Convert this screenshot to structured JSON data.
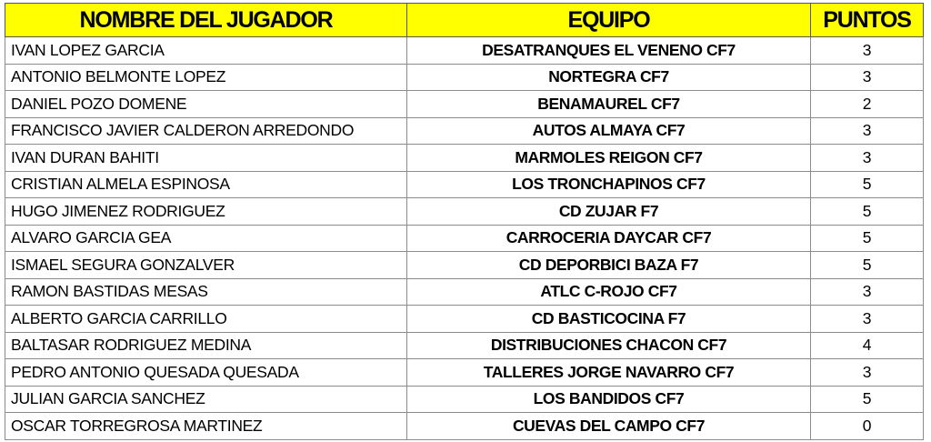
{
  "headers": {
    "name": "NOMBRE DEL JUGADOR",
    "team": "EQUIPO",
    "points": "PUNTOS"
  },
  "header_color": "#ffff00",
  "rows": [
    {
      "name": "IVAN LOPEZ GARCIA",
      "team": "DESATRANQUES EL VENENO CF7",
      "points": "3"
    },
    {
      "name": "ANTONIO BELMONTE LOPEZ",
      "team": "NORTEGRA CF7",
      "points": "3"
    },
    {
      "name": "DANIEL POZO DOMENE",
      "team": "BENAMAUREL CF7",
      "points": "2"
    },
    {
      "name": "FRANCISCO JAVIER CALDERON ARREDONDO",
      "team": "AUTOS ALMAYA CF7",
      "points": "3"
    },
    {
      "name": "IVAN DURAN BAHITI",
      "team": "MARMOLES REIGON CF7",
      "points": "3"
    },
    {
      "name": "CRISTIAN ALMELA ESPINOSA",
      "team": "LOS TRONCHAPINOS CF7",
      "points": "5"
    },
    {
      "name": "HUGO JIMENEZ RODRIGUEZ",
      "team": "CD ZUJAR F7",
      "points": "5"
    },
    {
      "name": "ALVARO GARCIA GEA",
      "team": "CARROCERIA DAYCAR CF7",
      "points": "5"
    },
    {
      "name": "ISMAEL SEGURA GONZALVER",
      "team": "CD DEPORBICI BAZA F7",
      "points": "5"
    },
    {
      "name": "RAMON BASTIDAS MESAS",
      "team": "ATLC C-ROJO CF7",
      "points": "3"
    },
    {
      "name": "ALBERTO GARCIA CARRILLO",
      "team": "CD BASTICOCINA F7",
      "points": "3"
    },
    {
      "name": "BALTASAR RODRIGUEZ MEDINA",
      "team": "DISTRIBUCIONES CHACON CF7",
      "points": "4"
    },
    {
      "name": "PEDRO ANTONIO QUESADA QUESADA",
      "team": "TALLERES JORGE NAVARRO CF7",
      "points": "3"
    },
    {
      "name": "JULIAN GARCIA SANCHEZ",
      "team": "LOS BANDIDOS CF7",
      "points": "5"
    },
    {
      "name": "OSCAR TORREGROSA MARTINEZ",
      "team": "CUEVAS DEL CAMPO CF7",
      "points": "0"
    }
  ]
}
